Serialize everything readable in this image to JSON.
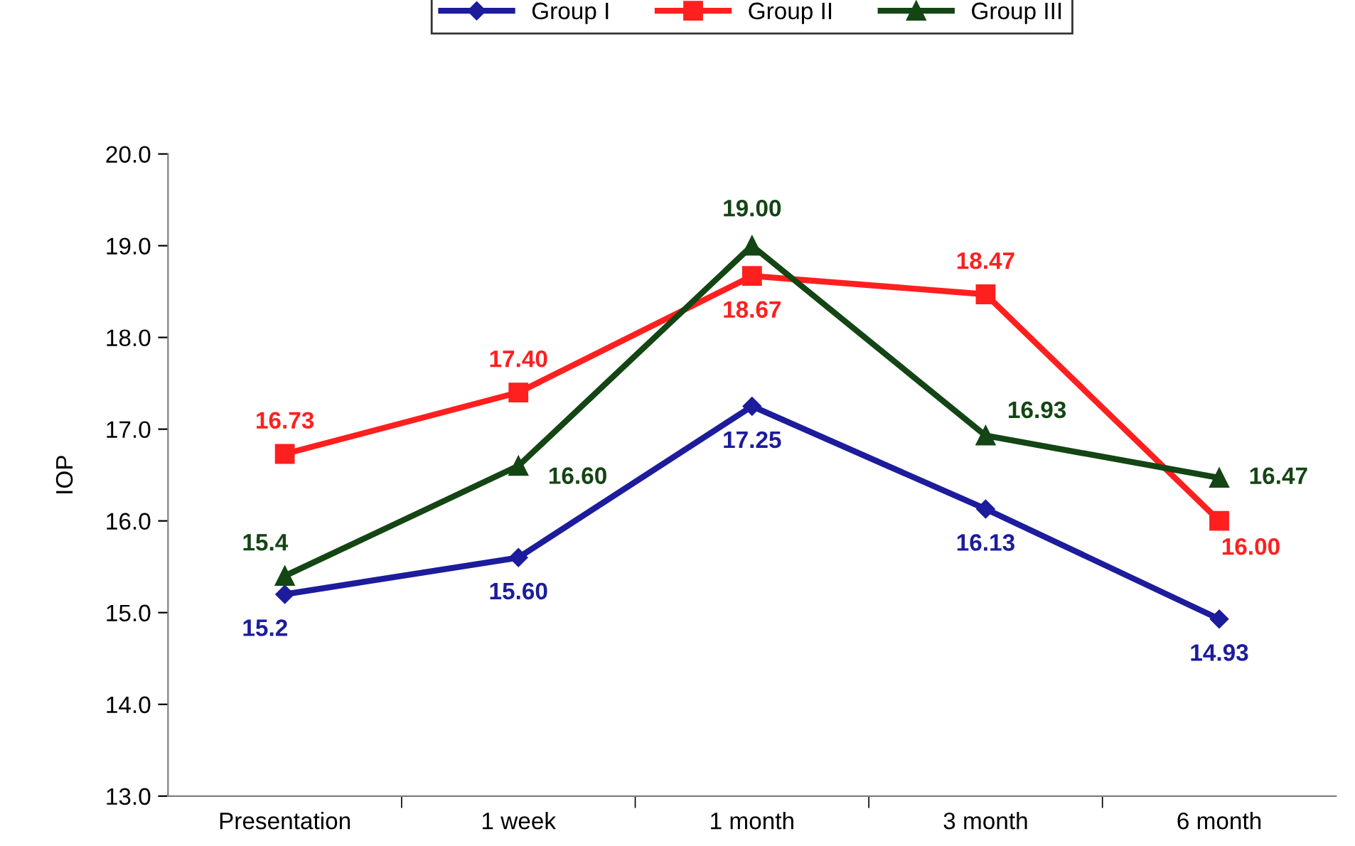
{
  "chart_data": {
    "type": "line",
    "ylabel": "IOP",
    "categories": [
      "Presentation",
      "1 week",
      "1 month",
      "3 month",
      "6 month"
    ],
    "ylim": [
      13.0,
      20.0
    ],
    "yticks": [
      {
        "value": 13,
        "label": "13.0"
      },
      {
        "value": 14,
        "label": "14.0"
      },
      {
        "value": 15,
        "label": "15.0"
      },
      {
        "value": 16,
        "label": "16.0"
      },
      {
        "value": 17,
        "label": "17.0"
      },
      {
        "value": 18,
        "label": "18.0"
      },
      {
        "value": 19,
        "label": "19.0"
      },
      {
        "value": 20,
        "label": "20.0"
      }
    ],
    "grid": false,
    "legend": "top",
    "line_style": "solid",
    "series": [
      {
        "name": "Group I",
        "color": "#1c1c9c",
        "marker": "diamond",
        "values": [
          15.2,
          15.6,
          17.25,
          16.13,
          14.93
        ],
        "value_labels": [
          "15.2",
          "15.60",
          "17.25",
          "16.13",
          "14.93"
        ]
      },
      {
        "name": "Group II",
        "color": "#ff1f1f",
        "marker": "square",
        "values": [
          16.73,
          17.4,
          18.67,
          18.47,
          16.0
        ],
        "value_labels": [
          "16.73",
          "17.40",
          "18.67",
          "18.47",
          "16.00"
        ]
      },
      {
        "name": "Group III",
        "color": "#144514",
        "marker": "triangle",
        "values": [
          15.4,
          16.6,
          19.0,
          16.93,
          16.47
        ],
        "value_labels": [
          "15.4",
          "16.60",
          "19.00",
          "16.93",
          "16.47"
        ]
      }
    ]
  }
}
